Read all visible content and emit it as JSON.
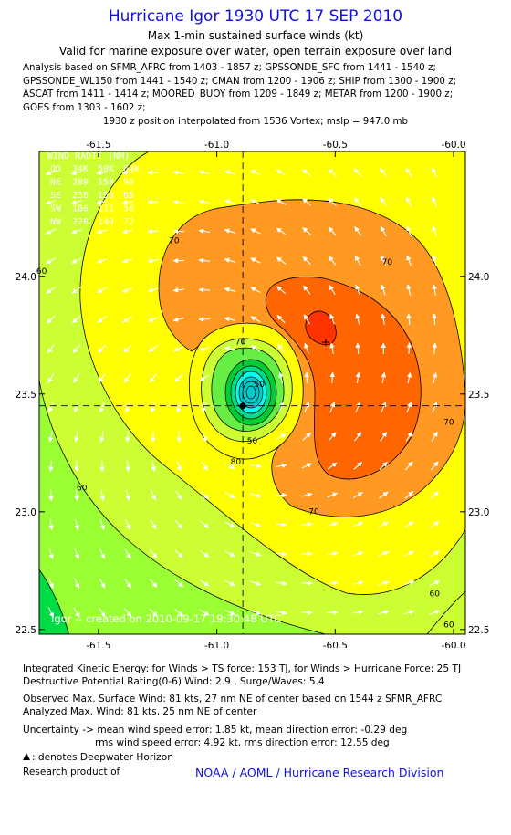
{
  "header": {
    "title": "Hurricane Igor 1930 UTC 17 SEP 2010",
    "subtitle": "Max 1-min sustained surface winds (kt)",
    "validity": "Valid for marine exposure over water, open terrain exposure over land",
    "analysis_lines": [
      "Analysis based on SFMR_AFRC from 1403 - 1857 z; GPSSONDE_SFC from 1441 - 1540 z;",
      "GPSSONDE_WL150 from 1441 - 1540 z; CMAN from 1200 - 1906 z; SHIP from 1300 - 1900 z;",
      "ASCAT from 1411 - 1414 z; MOORED_BUOY from 1209 - 1849 z; METAR from 1200 - 1900 z;",
      "GOES from 1303 - 1602 z;"
    ],
    "position_note": "1930 z position interpolated from 1536 Vortex; mslp = 947.0 mb"
  },
  "chart_data": {
    "type": "contour",
    "xlim": [
      -61.75,
      -59.95
    ],
    "ylim": [
      22.48,
      24.53
    ],
    "x_ticks": [
      -61.5,
      -61.0,
      -60.5,
      -60.0
    ],
    "x_tick_labels": [
      "-61.5",
      "-61.0",
      "-60.5",
      "-60.0"
    ],
    "y_ticks": [
      22.5,
      23.0,
      23.5,
      24.0
    ],
    "y_tick_labels": [
      "22.5",
      "23.0",
      "23.5",
      "24.0"
    ],
    "center": {
      "lon": -60.89,
      "lat": 23.45
    },
    "max_wind_marker": {
      "lon": -60.54,
      "lat": 23.72
    },
    "contour_labels": [
      {
        "text": "70",
        "lon": -61.18,
        "lat": 24.14
      },
      {
        "text": "70",
        "lon": -60.28,
        "lat": 24.05
      },
      {
        "text": "70",
        "lon": -60.9,
        "lat": 23.71
      },
      {
        "text": "70",
        "lon": -60.59,
        "lat": 22.99
      },
      {
        "text": "70",
        "lon": -60.02,
        "lat": 23.37
      },
      {
        "text": "80",
        "lon": -60.92,
        "lat": 23.2
      },
      {
        "text": "60",
        "lon": -61.74,
        "lat": 24.01
      },
      {
        "text": "60",
        "lon": -61.57,
        "lat": 23.09
      },
      {
        "text": "60",
        "lon": -60.08,
        "lat": 22.64
      },
      {
        "text": "60",
        "lon": -60.02,
        "lat": 22.51
      },
      {
        "text": "50",
        "lon": -60.82,
        "lat": 23.53
      },
      {
        "text": "50",
        "lon": -60.85,
        "lat": 23.29
      }
    ],
    "levels_kt": [
      10,
      20,
      30,
      40,
      50,
      60,
      70,
      80
    ],
    "level_colors": [
      "#00cccc",
      "#00ffee",
      "#00dd88",
      "#00cc33",
      "#66ee44",
      "#ccff33",
      "#ffff00",
      "#ff9922",
      "#ff6600",
      "#ff3300"
    ],
    "wind_radii": {
      "title": "WIND RADII (NM)",
      "header": [
        "QD",
        "34K",
        "50K",
        "64K"
      ],
      "rows": [
        [
          "NE",
          "289",
          "158",
          "90"
        ],
        [
          "SE",
          "238",
          "150",
          "65"
        ],
        [
          "SW",
          "186",
          "111",
          "56"
        ],
        [
          "NW",
          "228",
          "140",
          "72"
        ]
      ]
    },
    "watermark": "Igor -- created on 2010-09-17 19:30:48 UTC"
  },
  "footer": {
    "ike": "Integrated Kinetic Energy:  for Winds > TS force: 153 TJ,  for Winds > Hurricane Force: 25 TJ",
    "dpr": "Destructive Potential Rating(0-6)   Wind: 2.9 , Surge/Waves: 5.4",
    "observed": "Observed Max. Surface Wind: 81 kts, 27 nm NE of center based on 1544 z SFMR_AFRC",
    "analyzed": "Analyzed Max. Wind: 81 kts, 25 nm NE of center",
    "uncertainty1": "Uncertainty -> mean wind speed error: 1.85 kt,   mean direction error:  -0.29 deg",
    "uncertainty2": "rms wind speed error: 4.92 kt,   rms direction error: 12.55 deg",
    "deepwater": ": denotes Deepwater Horizon",
    "research": "Research product of",
    "credit": "NOAA / AOML / Hurricane Research Division"
  }
}
